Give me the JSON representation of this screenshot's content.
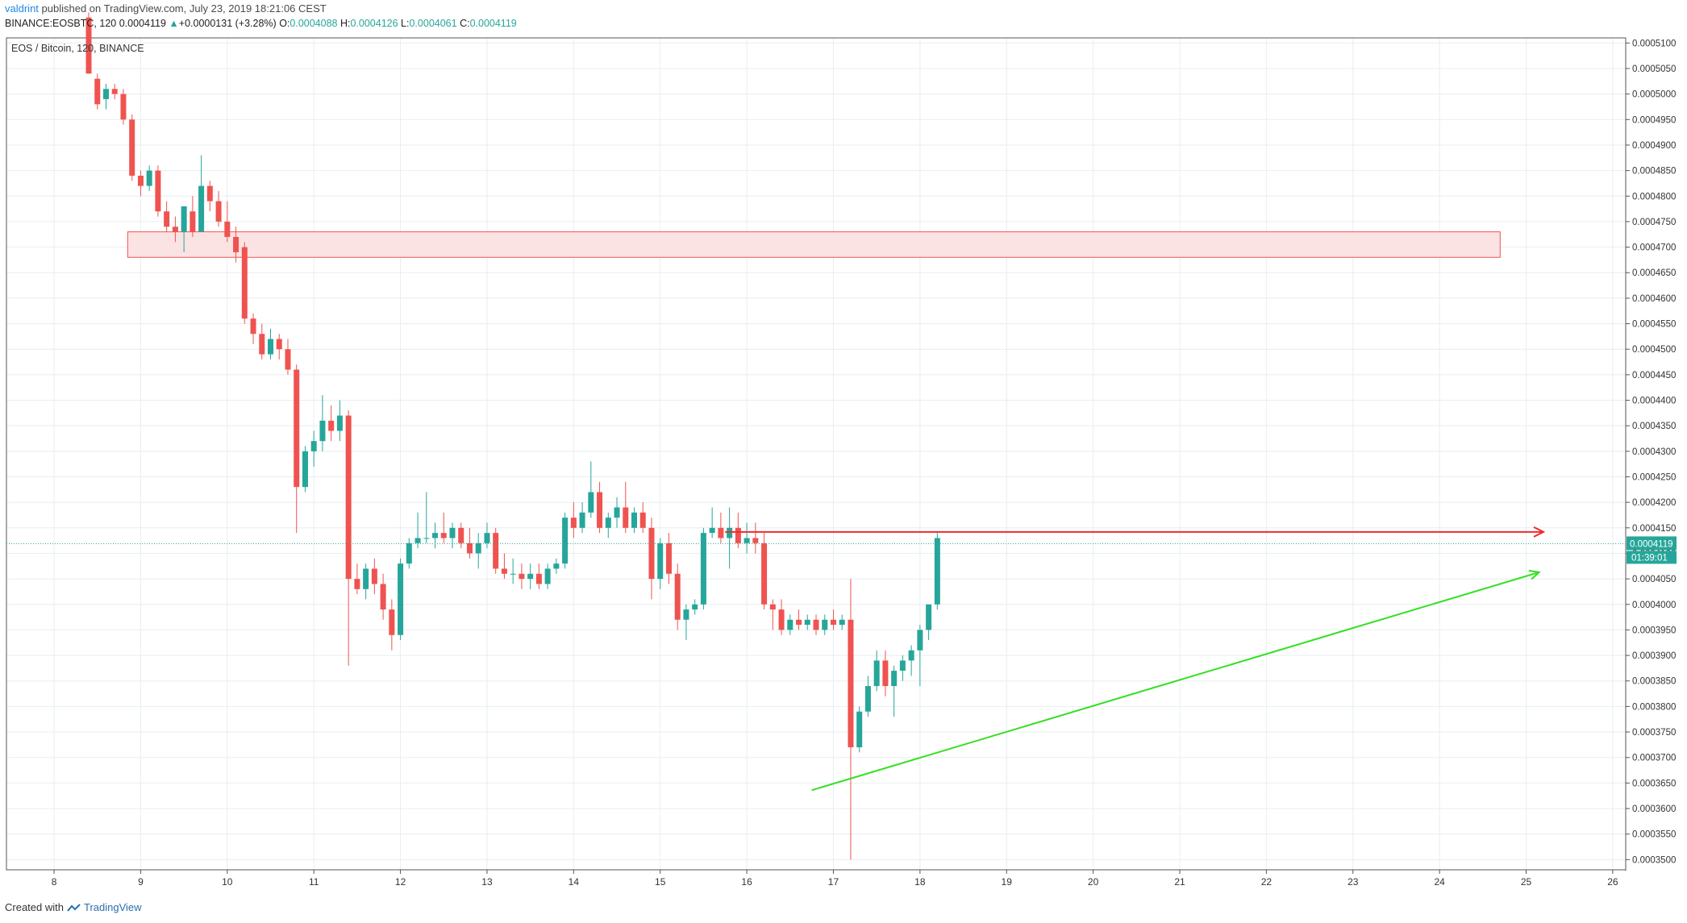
{
  "header": {
    "user": "valdrint",
    "published": " published on TradingView.com, July 23, 2019 18:21:06 CEST",
    "symbol": "BINANCE:EOSBTC, 120",
    "last": "0.0004119",
    "change_arrow": "▲",
    "change": "+0.0000131 (+3.28%)",
    "o_label": "O:",
    "o": "0.0004088",
    "h_label": "H:",
    "h": "0.0004126",
    "l_label": "L:",
    "l": "0.0004061",
    "c_label": "C:",
    "c": "0.0004119"
  },
  "footer": {
    "created": "Created with",
    "brand": "TradingView",
    "logo_icon": "tradingview-logo-icon"
  },
  "colors": {
    "up": "#26a69a",
    "down": "#ef5350",
    "grid": "#e8eef1",
    "resistance": "#ef2a2a",
    "support": "#33e01f",
    "zone_fill": "#fbe3e3",
    "zone_stroke": "#ef5350",
    "price_dot": "#26a69a"
  },
  "chart_data": {
    "type": "candlestick",
    "title": "EOS / Bitcoin, 120, BINANCE",
    "ylim": [
      0.000348,
      0.000511
    ],
    "xlim": [
      7.45,
      26.15
    ],
    "y_ticks": [
      "0.0005100",
      "0.0005050",
      "0.0005000",
      "0.0004950",
      "0.0004900",
      "0.0004850",
      "0.0004800",
      "0.0004750",
      "0.0004700",
      "0.0004650",
      "0.0004600",
      "0.0004550",
      "0.0004500",
      "0.0004450",
      "0.0004400",
      "0.0004350",
      "0.0004300",
      "0.0004250",
      "0.0004200",
      "0.0004150",
      "0.0004100",
      "0.0004050",
      "0.0004000",
      "0.0003950",
      "0.0003900",
      "0.0003850",
      "0.0003800",
      "0.0003750",
      "0.0003700",
      "0.0003650",
      "0.0003600",
      "0.0003550",
      "0.0003500"
    ],
    "x_ticks": [
      "8",
      "9",
      "10",
      "11",
      "12",
      "13",
      "14",
      "15",
      "16",
      "17",
      "18",
      "19",
      "20",
      "21",
      "22",
      "23",
      "24",
      "25",
      "26"
    ],
    "current_price_label": "0.0004119",
    "countdown_label": "01:39:01",
    "current_price": 0.0004119,
    "zone": {
      "x0": 8.85,
      "x1": 24.7,
      "y0": 0.000468,
      "y1": 0.000473
    },
    "resistance_line": {
      "x0": 15.75,
      "x1": 25.2,
      "y": 0.0004142
    },
    "support_line": {
      "x0": 16.75,
      "y0": 0.0003636,
      "x1": 25.15,
      "y1": 0.0004063
    },
    "candles": [
      [
        8.4,
        0.000515,
        0.000516,
        0.000504,
        0.000504
      ],
      [
        8.5,
        0.000503,
        0.000504,
        0.000497,
        0.000498
      ],
      [
        8.6,
        0.000499,
        0.000502,
        0.000497,
        0.000501
      ],
      [
        8.7,
        0.000501,
        0.000502,
        0.000499,
        0.0005
      ],
      [
        8.8,
        0.0005,
        0.000501,
        0.000494,
        0.000495
      ],
      [
        8.9,
        0.000495,
        0.000496,
        0.000483,
        0.000484
      ],
      [
        9.0,
        0.000484,
        0.000485,
        0.00048,
        0.000482
      ],
      [
        9.1,
        0.000482,
        0.000486,
        0.000481,
        0.000485
      ],
      [
        9.2,
        0.000485,
        0.000486,
        0.000476,
        0.000477
      ],
      [
        9.3,
        0.000477,
        0.000479,
        0.000473,
        0.000474
      ],
      [
        9.4,
        0.000474,
        0.000476,
        0.000471,
        0.000473
      ],
      [
        9.5,
        0.000473,
        0.000478,
        0.000469,
        0.000478
      ],
      [
        9.6,
        0.000477,
        0.00048,
        0.000472,
        0.000473
      ],
      [
        9.7,
        0.000473,
        0.000488,
        0.000473,
        0.000482
      ],
      [
        9.8,
        0.000482,
        0.000483,
        0.000477,
        0.000479
      ],
      [
        9.9,
        0.000479,
        0.000481,
        0.000474,
        0.000475
      ],
      [
        10.0,
        0.000475,
        0.000479,
        0.000471,
        0.000472
      ],
      [
        10.1,
        0.000472,
        0.000474,
        0.000467,
        0.000469
      ],
      [
        10.2,
        0.00047,
        0.000471,
        0.000455,
        0.000456
      ],
      [
        10.3,
        0.000456,
        0.000457,
        0.000451,
        0.000453
      ],
      [
        10.4,
        0.000453,
        0.000455,
        0.000448,
        0.000449
      ],
      [
        10.5,
        0.000449,
        0.000454,
        0.000448,
        0.000452
      ],
      [
        10.6,
        0.000452,
        0.000453,
        0.000448,
        0.00045
      ],
      [
        10.7,
        0.00045,
        0.000452,
        0.000445,
        0.000446
      ],
      [
        10.8,
        0.000446,
        0.000447,
        0.000414,
        0.000423
      ],
      [
        10.9,
        0.000423,
        0.000431,
        0.000422,
        0.00043
      ],
      [
        11.0,
        0.00043,
        0.000434,
        0.000427,
        0.000432
      ],
      [
        11.1,
        0.000432,
        0.000441,
        0.00043,
        0.000436
      ],
      [
        11.2,
        0.000436,
        0.000439,
        0.000432,
        0.000434
      ],
      [
        11.3,
        0.000434,
        0.00044,
        0.000432,
        0.000437
      ],
      [
        11.4,
        0.000437,
        0.000438,
        0.000388,
        0.000405
      ],
      [
        11.5,
        0.000405,
        0.000408,
        0.000402,
        0.000403
      ],
      [
        11.6,
        0.000403,
        0.000408,
        0.000401,
        0.000407
      ],
      [
        11.7,
        0.000407,
        0.000409,
        0.000402,
        0.000404
      ],
      [
        11.8,
        0.000404,
        0.000406,
        0.000397,
        0.000399
      ],
      [
        11.9,
        0.000399,
        0.000401,
        0.000391,
        0.000394
      ],
      [
        12.0,
        0.000394,
        0.000409,
        0.000393,
        0.000408
      ],
      [
        12.1,
        0.000408,
        0.000413,
        0.000407,
        0.000412
      ],
      [
        12.2,
        0.000412,
        0.000418,
        0.000411,
        0.000413
      ],
      [
        12.3,
        0.000413,
        0.000422,
        0.000412,
        0.000413
      ],
      [
        12.4,
        0.000413,
        0.000416,
        0.000411,
        0.000414
      ],
      [
        12.5,
        0.000414,
        0.000418,
        0.000412,
        0.000413
      ],
      [
        12.6,
        0.000413,
        0.000416,
        0.000411,
        0.000415
      ],
      [
        12.7,
        0.000415,
        0.000416,
        0.000411,
        0.000412
      ],
      [
        12.8,
        0.000412,
        0.000415,
        0.000409,
        0.00041
      ],
      [
        12.9,
        0.00041,
        0.000414,
        0.000407,
        0.000412
      ],
      [
        13.0,
        0.000412,
        0.000416,
        0.000411,
        0.000414
      ],
      [
        13.1,
        0.000414,
        0.000415,
        0.000406,
        0.000407
      ],
      [
        13.2,
        0.000407,
        0.00041,
        0.000405,
        0.000406
      ],
      [
        13.3,
        0.000406,
        0.000409,
        0.000404,
        0.000406
      ],
      [
        13.4,
        0.000406,
        0.000408,
        0.000403,
        0.000405
      ],
      [
        13.5,
        0.000405,
        0.000408,
        0.000403,
        0.000406
      ],
      [
        13.6,
        0.000406,
        0.000408,
        0.000403,
        0.000404
      ],
      [
        13.7,
        0.000404,
        0.000408,
        0.000403,
        0.000407
      ],
      [
        13.8,
        0.000407,
        0.000409,
        0.000406,
        0.000408
      ],
      [
        13.9,
        0.000408,
        0.000418,
        0.000407,
        0.000417
      ],
      [
        14.0,
        0.000417,
        0.00042,
        0.000413,
        0.000415
      ],
      [
        14.1,
        0.000415,
        0.00042,
        0.000414,
        0.000418
      ],
      [
        14.2,
        0.000418,
        0.000428,
        0.000417,
        0.000422
      ],
      [
        14.3,
        0.000422,
        0.000424,
        0.000414,
        0.000415
      ],
      [
        14.4,
        0.000415,
        0.000418,
        0.000413,
        0.000417
      ],
      [
        14.5,
        0.000417,
        0.000421,
        0.000415,
        0.000419
      ],
      [
        14.6,
        0.000419,
        0.000424,
        0.000414,
        0.000415
      ],
      [
        14.7,
        0.000415,
        0.000419,
        0.000414,
        0.000418
      ],
      [
        14.8,
        0.000418,
        0.00042,
        0.000414,
        0.000415
      ],
      [
        14.9,
        0.000415,
        0.000417,
        0.000401,
        0.000405
      ],
      [
        15.0,
        0.000405,
        0.000413,
        0.000403,
        0.000412
      ],
      [
        15.1,
        0.000412,
        0.000414,
        0.000404,
        0.000406
      ],
      [
        15.2,
        0.000406,
        0.000408,
        0.000395,
        0.000397
      ],
      [
        15.3,
        0.000397,
        0.0004,
        0.000393,
        0.000399
      ],
      [
        15.4,
        0.000399,
        0.000401,
        0.000398,
        0.0004
      ],
      [
        15.5,
        0.0004,
        0.000415,
        0.000399,
        0.000414
      ],
      [
        15.6,
        0.000414,
        0.000419,
        0.000413,
        0.000415
      ],
      [
        15.7,
        0.000415,
        0.000418,
        0.000412,
        0.000413
      ],
      [
        15.8,
        0.000413,
        0.000419,
        0.000407,
        0.000415
      ],
      [
        15.9,
        0.000415,
        0.000418,
        0.000411,
        0.000412
      ],
      [
        16.0,
        0.000412,
        0.000416,
        0.00041,
        0.000413
      ],
      [
        16.1,
        0.000413,
        0.000416,
        0.00041,
        0.000412
      ],
      [
        16.2,
        0.000412,
        0.000414,
        0.000399,
        0.0004
      ],
      [
        16.3,
        0.0004,
        0.000401,
        0.000395,
        0.000399
      ],
      [
        16.4,
        0.000399,
        0.000401,
        0.000394,
        0.000395
      ],
      [
        16.5,
        0.000395,
        0.000398,
        0.000394,
        0.000397
      ],
      [
        16.6,
        0.000397,
        0.000399,
        0.000395,
        0.000396
      ],
      [
        16.7,
        0.000396,
        0.000398,
        0.000395,
        0.000397
      ],
      [
        16.8,
        0.000397,
        0.000398,
        0.000394,
        0.000395
      ],
      [
        16.9,
        0.000395,
        0.000398,
        0.000394,
        0.000397
      ],
      [
        17.0,
        0.000397,
        0.000399,
        0.000395,
        0.000396
      ],
      [
        17.1,
        0.000396,
        0.000398,
        0.000395,
        0.000397
      ],
      [
        17.2,
        0.000397,
        0.000405,
        0.00035,
        0.000372
      ],
      [
        17.3,
        0.000372,
        0.00038,
        0.000371,
        0.000379
      ],
      [
        17.4,
        0.000379,
        0.000386,
        0.000378,
        0.000384
      ],
      [
        17.5,
        0.000384,
        0.000391,
        0.000383,
        0.000389
      ],
      [
        17.6,
        0.000389,
        0.000391,
        0.000382,
        0.000384
      ],
      [
        17.7,
        0.000384,
        0.000388,
        0.000378,
        0.000387
      ],
      [
        17.8,
        0.000387,
        0.00039,
        0.000385,
        0.000389
      ],
      [
        17.9,
        0.000389,
        0.000392,
        0.000386,
        0.000391
      ],
      [
        18.0,
        0.000391,
        0.000396,
        0.000384,
        0.000395
      ],
      [
        18.1,
        0.000395,
        0.0004,
        0.000393,
        0.0004
      ],
      [
        18.2,
        0.0004,
        0.000414,
        0.000399,
        0.000413
      ]
    ]
  }
}
